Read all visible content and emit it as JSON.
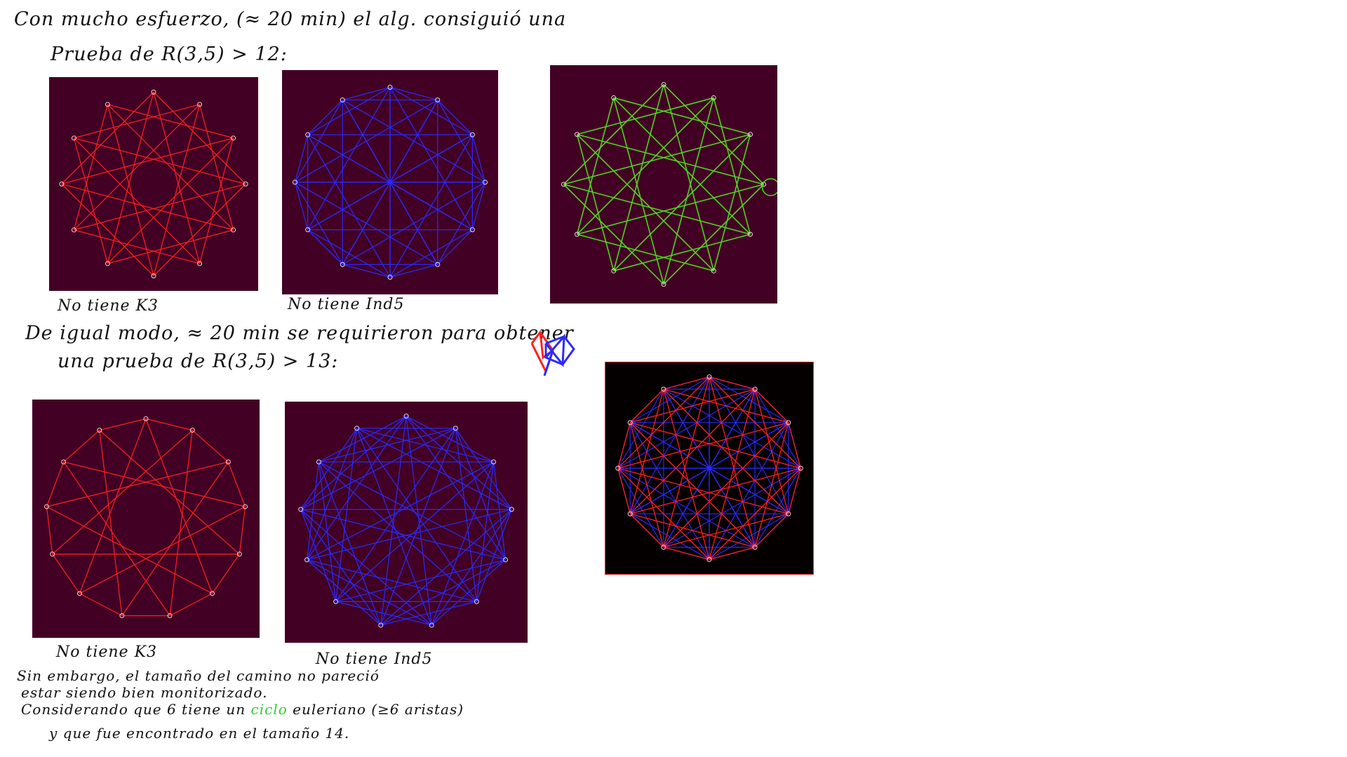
{
  "notes": {
    "line1": "Con mucho esfuerzo, (≈ 20 min) el alg. consiguió una",
    "line2": "Prueba de R(3,5) > 12:",
    "line3": "De igual modo, ≈ 20 min se requirieron para obtener",
    "line4": "una prueba de R(3,5) > 13:",
    "line5": "Sin embargo, el tamaño del camino no pareció",
    "line6": "estar siendo bien monitorizado.",
    "line7a": "Considerando que 6 tiene un",
    "line7b": "ciclo",
    "line7c": "euleriano (≥6 aristas)",
    "line8": "y que fue encontrado en el tamaño 14."
  },
  "captions": {
    "g1": "No tiene K3",
    "g2": "No tiene Ind5",
    "g4": "No tiene K3",
    "g5": "No tiene Ind5"
  },
  "colors": {
    "panel_bg": "#420124",
    "red_edge": "#ff2020",
    "blue_edge": "#2a2aff",
    "green_edge": "#44dd22",
    "black_bg": "#050000"
  },
  "graphs": {
    "g1": {
      "n": 12,
      "color": "red",
      "rule": "red12"
    },
    "g2": {
      "n": 12,
      "color": "blue",
      "rule": "blue12"
    },
    "g3": {
      "n": 12,
      "color": "green",
      "rule": "red12"
    },
    "g4": {
      "n": 13,
      "color": "red",
      "rule": "red13"
    },
    "g5": {
      "n": 13,
      "color": "blue",
      "rule": "blue13"
    },
    "g6": {
      "n": 12,
      "color": "mixed",
      "rule": "mixed12"
    }
  }
}
